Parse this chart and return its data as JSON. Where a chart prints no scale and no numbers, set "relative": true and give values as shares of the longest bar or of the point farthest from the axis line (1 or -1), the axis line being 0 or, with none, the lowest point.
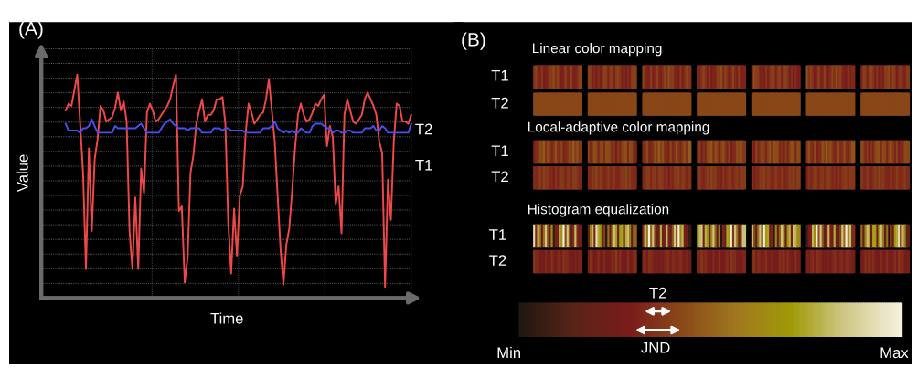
{
  "chart_data": [
    {
      "type": "line",
      "title": "(A)",
      "xlabel": "Time",
      "ylabel": "Value",
      "relative": true,
      "grid": true,
      "legend": false,
      "marker": "none",
      "line_style": "solid",
      "categories": [
        null,
        null,
        null,
        null,
        null,
        null,
        null,
        null,
        null,
        null,
        null,
        null,
        null,
        null,
        null,
        null,
        null,
        null,
        null,
        null,
        null,
        null,
        null,
        null,
        null,
        null,
        null,
        null,
        null,
        null,
        null,
        null,
        null,
        null,
        null,
        null,
        null,
        null,
        null,
        null,
        null,
        null,
        null,
        null,
        null,
        null,
        null,
        null,
        null,
        null,
        null,
        null,
        null,
        null,
        null,
        null,
        null,
        null,
        null,
        null,
        null,
        null,
        null,
        null,
        null,
        null,
        null,
        null,
        null,
        null,
        null,
        null,
        null,
        null,
        null,
        null,
        null,
        null,
        null,
        null,
        null,
        null,
        null,
        null,
        null,
        null,
        null,
        null,
        null,
        null,
        null,
        null,
        null,
        null,
        null,
        null,
        null,
        null,
        null,
        null,
        null,
        null,
        null,
        null,
        null,
        null,
        null,
        null,
        null,
        null,
        null,
        null,
        null,
        null,
        null,
        null,
        null,
        null,
        null,
        null
      ],
      "series": [
        {
          "name": "T1",
          "color": "#f04848",
          "values": [
            0.84,
            0.87,
            0.86,
            0.93,
            1.0,
            0.78,
            0.56,
            0.13,
            0.67,
            0.3,
            0.62,
            0.71,
            0.86,
            0.84,
            0.79,
            0.8,
            0.81,
            0.85,
            0.92,
            0.84,
            0.88,
            0.79,
            0.3,
            0.13,
            0.45,
            0.13,
            0.58,
            0.47,
            0.83,
            0.87,
            0.84,
            0.79,
            0.8,
            0.82,
            0.84,
            0.86,
            0.89,
            0.95,
            1.0,
            0.39,
            0.41,
            0.07,
            0.18,
            0.56,
            0.64,
            0.78,
            0.84,
            0.89,
            0.79,
            0.82,
            0.82,
            0.84,
            0.89,
            0.89,
            0.9,
            0.78,
            0.34,
            0.11,
            0.4,
            0.19,
            0.46,
            0.5,
            0.74,
            0.87,
            0.83,
            0.78,
            0.8,
            0.82,
            0.83,
            0.89,
            0.98,
            0.84,
            0.7,
            0.46,
            0.22,
            0.06,
            0.24,
            0.31,
            0.48,
            0.67,
            0.82,
            0.87,
            0.82,
            0.79,
            0.8,
            0.83,
            0.87,
            0.86,
            0.89,
            0.91,
            0.68,
            0.77,
            0.72,
            0.42,
            0.5,
            0.29,
            0.82,
            0.89,
            0.84,
            0.79,
            0.78,
            0.8,
            0.82,
            0.89,
            0.92,
            0.89,
            0.86,
            0.82,
            0.7,
            0.65,
            0.05,
            0.53,
            0.35,
            0.7,
            0.87,
            0.86,
            0.79,
            0.79,
            0.78,
            0.82
          ]
        },
        {
          "name": "T2",
          "color": "#4a4ef0",
          "values": [
            0.78,
            0.75,
            0.75,
            0.75,
            0.75,
            0.74,
            0.76,
            0.76,
            0.77,
            0.8,
            0.77,
            0.74,
            0.74,
            0.74,
            0.74,
            0.74,
            0.74,
            0.77,
            0.76,
            0.76,
            0.76,
            0.76,
            0.76,
            0.76,
            0.76,
            0.77,
            0.78,
            0.76,
            0.74,
            0.74,
            0.74,
            0.74,
            0.74,
            0.76,
            0.78,
            0.79,
            0.8,
            0.78,
            0.77,
            0.76,
            0.76,
            0.76,
            0.75,
            0.76,
            0.76,
            0.76,
            0.76,
            0.74,
            0.74,
            0.74,
            0.74,
            0.76,
            0.76,
            0.76,
            0.75,
            0.76,
            0.76,
            0.75,
            0.75,
            0.75,
            0.75,
            0.75,
            0.74,
            0.74,
            0.74,
            0.74,
            0.74,
            0.74,
            0.76,
            0.76,
            0.76,
            0.77,
            0.79,
            0.76,
            0.75,
            0.74,
            0.75,
            0.74,
            0.75,
            0.74,
            0.74,
            0.76,
            0.75,
            0.74,
            0.74,
            0.77,
            0.78,
            0.78,
            0.78,
            0.77,
            0.76,
            0.76,
            0.74,
            0.75,
            0.75,
            0.74,
            0.74,
            0.75,
            0.75,
            0.74,
            0.74,
            0.74,
            0.74,
            0.76,
            0.76,
            0.76,
            0.77,
            0.75,
            0.75,
            0.77,
            0.76,
            0.74,
            0.74,
            0.74,
            0.74,
            0.74,
            0.74,
            0.74,
            0.74,
            0.78
          ]
        }
      ]
    },
    {
      "type": "other",
      "title": "(B)",
      "annotations": [
        "Linear color mapping",
        "T1",
        "T2",
        "Local-adaptive color mapping",
        "T1",
        "T2",
        "Histogram equalization",
        "T1",
        "T2",
        "T2",
        "JND",
        "Min",
        "Max"
      ]
    }
  ]
}
